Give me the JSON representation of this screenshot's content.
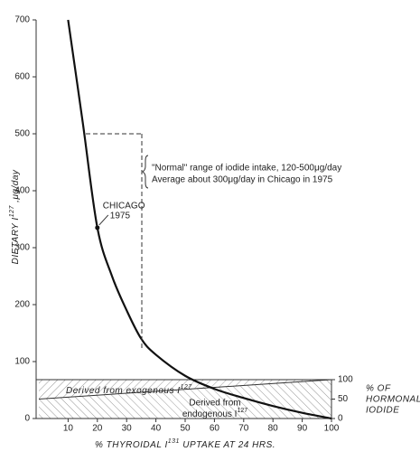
{
  "chart_data": {
    "type": "line",
    "x": [
      10,
      15,
      20,
      25,
      30,
      35,
      40,
      50,
      60,
      70,
      80,
      90,
      100
    ],
    "series": [
      {
        "color": "#111111",
        "values": [
          700,
          520,
          335,
          250,
          190,
          140,
          112,
          75,
          52,
          36,
          22,
          10,
          0
        ]
      }
    ],
    "xlim": [
      0,
      100
    ],
    "xticks": [
      10,
      20,
      30,
      40,
      50,
      60,
      70,
      80,
      90,
      100
    ],
    "ylim": [
      0,
      700
    ],
    "yticks": [
      0,
      100,
      200,
      300,
      400,
      500,
      600,
      700
    ],
    "y2lim": [
      0,
      100
    ],
    "y2ticks": [
      0,
      50,
      100
    ],
    "xlabel": [
      "% THYROIDAL I",
      "131",
      " UPTAKE AT 24 HRS."
    ],
    "ylabel": [
      "DIETARY I",
      "127",
      " ,μg/day"
    ],
    "y2label": [
      "% OF",
      "HORMONAL",
      "IODIDE"
    ],
    "hormonal_split": {
      "x": [
        0,
        100
      ],
      "y2": [
        50,
        100
      ]
    },
    "exogenous_label": [
      "Derived from exogenous I",
      "127"
    ],
    "endogenous_label": [
      "Derived from",
      "endogenous I",
      "127"
    ],
    "normal_range": [
      120,
      500
    ],
    "normal_range_note": [
      "\"Normal\" range of iodide intake, 120-500μg/day",
      "Average about 300μg/day in Chicago in 1975"
    ],
    "chicago": {
      "x": 20,
      "y": 335,
      "label": [
        "CHICAGO",
        "1975"
      ]
    }
  }
}
